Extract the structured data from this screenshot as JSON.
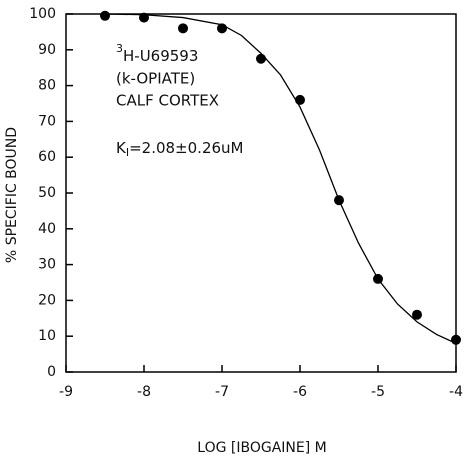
{
  "chart_data": {
    "type": "scatter",
    "xlabel": "LOG [IBOGAINE] M",
    "ylabel": "% SPECIFIC BOUND",
    "annotations": [
      {
        "sup": "3",
        "text": "H-U69593"
      },
      {
        "text": "(k-OPIATE)"
      },
      {
        "text": "CALF CORTEX"
      },
      {
        "text": "K",
        "sub": "I",
        "rest": "=2.08±0.26uM"
      }
    ],
    "xlim": [
      -9,
      -4
    ],
    "xticks": [
      -9,
      -8,
      -7,
      -6,
      -5,
      -4
    ],
    "ylim": [
      0,
      100
    ],
    "yticks": [
      0,
      10,
      20,
      30,
      40,
      50,
      60,
      70,
      80,
      90,
      100
    ],
    "color": "#000000",
    "series": [
      {
        "x": [
          -8.5,
          -8,
          -7.5,
          -7,
          -6.5,
          -6,
          -5.5,
          -5,
          -4.5,
          -4
        ],
        "values": [
          99.5,
          99,
          96,
          96,
          87.5,
          76,
          48,
          26,
          16,
          9
        ]
      },
      {
        "x": [
          -8.5,
          -8,
          -7.5,
          -7,
          -6.75,
          -6.5,
          -6.25,
          -6,
          -5.75,
          -5.5,
          -5.25,
          -5,
          -4.75,
          -4.5,
          -4.25,
          -4
        ],
        "values": [
          100,
          99.8,
          99,
          97,
          94,
          89,
          83,
          74,
          62,
          48,
          36,
          26,
          19,
          14,
          10.5,
          8
        ]
      }
    ]
  }
}
